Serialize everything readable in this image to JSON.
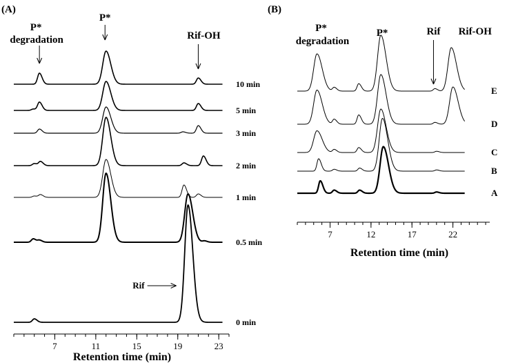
{
  "chart_data": [
    {
      "type": "line",
      "panel_label": "(A)",
      "xlabel": "Retention time (min)",
      "xlim": [
        3,
        24
      ],
      "xticks": [
        7,
        11,
        15,
        19,
        23
      ],
      "annotations": [
        {
          "text": "P* degradation",
          "lines": [
            "P*",
            "degradation"
          ],
          "x": 5.5
        },
        {
          "text": "P*",
          "x": 11.9
        },
        {
          "text": "Rif-OH",
          "x": 21.0
        },
        {
          "text": "Rif",
          "x": 19.8,
          "arrow": "right"
        }
      ],
      "series": [
        {
          "name": "10 min",
          "peaks": [
            {
              "x": 5.5,
              "h": 0.16
            },
            {
              "x": 12.0,
              "h": 0.48
            },
            {
              "x": 21.0,
              "h": 0.09
            }
          ]
        },
        {
          "name": "5 min",
          "peaks": [
            {
              "x": 4.9,
              "h": 0.02
            },
            {
              "x": 5.5,
              "h": 0.12
            },
            {
              "x": 12.0,
              "h": 0.42
            },
            {
              "x": 21.0,
              "h": 0.1
            }
          ]
        },
        {
          "name": "3 min",
          "peaks": [
            {
              "x": 5.5,
              "h": 0.06
            },
            {
              "x": 12.0,
              "h": 0.38
            },
            {
              "x": 19.5,
              "h": 0.02
            },
            {
              "x": 21.0,
              "h": 0.11
            }
          ]
        },
        {
          "name": "2 min",
          "peaks": [
            {
              "x": 5.0,
              "h": 0.03
            },
            {
              "x": 5.6,
              "h": 0.06
            },
            {
              "x": 12.0,
              "h": 0.7
            },
            {
              "x": 19.6,
              "h": 0.04
            },
            {
              "x": 21.5,
              "h": 0.14
            }
          ]
        },
        {
          "name": "1 min",
          "peaks": [
            {
              "x": 5.0,
              "h": 0.02
            },
            {
              "x": 5.6,
              "h": 0.04
            },
            {
              "x": 12.0,
              "h": 0.55
            },
            {
              "x": 19.6,
              "h": 0.18
            },
            {
              "x": 21.0,
              "h": 0.05
            }
          ]
        },
        {
          "name": "0.5 min",
          "peaks": [
            {
              "x": 4.9,
              "h": 0.05
            },
            {
              "x": 5.5,
              "h": 0.03
            },
            {
              "x": 12.0,
              "h": 1.0
            },
            {
              "x": 20.0,
              "h": 0.7
            },
            {
              "x": 21.6,
              "h": 0.02
            }
          ]
        },
        {
          "name": "0 min",
          "peaks": [
            {
              "x": 5.0,
              "h": 0.05
            },
            {
              "x": 20.0,
              "h": 1.7
            }
          ]
        }
      ]
    },
    {
      "type": "line",
      "panel_label": "(B)",
      "xlabel": "Retention time (min)",
      "xlim": [
        3,
        26.5
      ],
      "xticks": [
        7,
        12,
        17,
        22
      ],
      "annotations": [
        {
          "text": "P* degradation",
          "lines": [
            "P*",
            "degradation"
          ],
          "x": 5.4
        },
        {
          "text": "P*",
          "x": 13.2
        },
        {
          "text": "Rif",
          "x": 19.8
        },
        {
          "text": "Rif-OH",
          "x": 22.0
        }
      ],
      "series": [
        {
          "name": "E",
          "peaks": [
            {
              "x": 5.4,
              "h": 0.6
            },
            {
              "x": 7.5,
              "h": 0.06
            },
            {
              "x": 10.5,
              "h": 0.12
            },
            {
              "x": 13.2,
              "h": 0.9
            },
            {
              "x": 19.8,
              "h": 0.04
            },
            {
              "x": 21.8,
              "h": 0.7
            }
          ]
        },
        {
          "name": "D",
          "peaks": [
            {
              "x": 5.4,
              "h": 0.55
            },
            {
              "x": 7.5,
              "h": 0.08
            },
            {
              "x": 10.5,
              "h": 0.15
            },
            {
              "x": 13.2,
              "h": 0.8
            },
            {
              "x": 19.8,
              "h": 0.03
            },
            {
              "x": 22.0,
              "h": 0.6
            }
          ]
        },
        {
          "name": "C",
          "peaks": [
            {
              "x": 5.4,
              "h": 0.35
            },
            {
              "x": 7.5,
              "h": 0.05
            },
            {
              "x": 10.5,
              "h": 0.08
            },
            {
              "x": 13.2,
              "h": 0.7
            },
            {
              "x": 20.0,
              "h": 0.02
            }
          ]
        },
        {
          "name": "B",
          "peaks": [
            {
              "x": 5.6,
              "h": 0.2
            },
            {
              "x": 7.5,
              "h": 0.03
            },
            {
              "x": 10.6,
              "h": 0.05
            },
            {
              "x": 13.4,
              "h": 0.85
            },
            {
              "x": 20.0,
              "h": 0.02
            }
          ]
        },
        {
          "name": "A",
          "peaks": [
            {
              "x": 5.8,
              "h": 0.2
            },
            {
              "x": 7.5,
              "h": 0.05
            },
            {
              "x": 10.6,
              "h": 0.05
            },
            {
              "x": 13.5,
              "h": 0.75
            },
            {
              "x": 20.0,
              "h": 0.02
            }
          ]
        }
      ]
    }
  ]
}
